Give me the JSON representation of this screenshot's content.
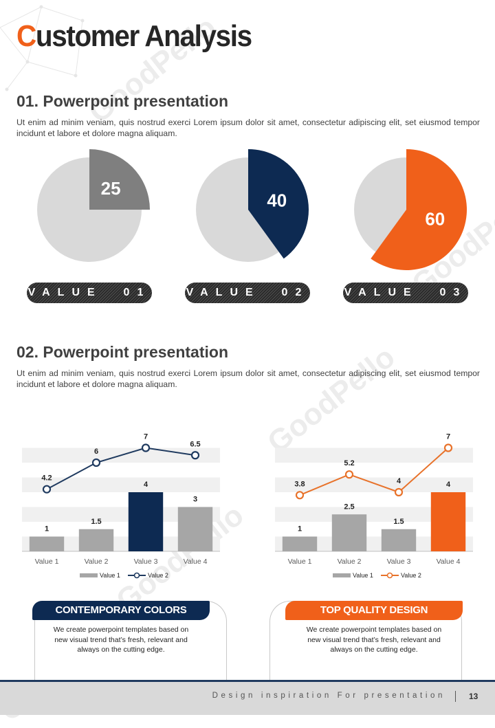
{
  "page_title": {
    "first_letter": "C",
    "rest": "ustomer Analysis"
  },
  "watermark": "GoodPello",
  "section1": {
    "heading": "01. Powerpoint presentation",
    "text": "Ut enim ad minim veniam, quis nostrud exerci  Lorem ipsum dolor sit amet, consectetur adipiscing elit, set eiusmod tempor incidunt et labore et dolore magna aliquam.",
    "pies": [
      {
        "value": 25,
        "label": "VALUE  01",
        "color": "#7f7f7f"
      },
      {
        "value": 40,
        "label": "VALUE  02",
        "color": "#0d2a52"
      },
      {
        "value": 60,
        "label": "VALUE  03",
        "color": "#f0601a"
      }
    ],
    "pie_background_color": "#d9d9d9"
  },
  "section2": {
    "heading": "02. Powerpoint presentation",
    "text": "Ut enim ad minim veniam, quis nostrud exerci  Lorem ipsum dolor sit amet, consectetur adipiscing elit, set eiusmod tempor incidunt et labore et dolore magna aliquam."
  },
  "chart_data": [
    {
      "type": "bar+line",
      "categories": [
        "Value 1",
        "Value 2",
        "Value 3",
        "Value 4"
      ],
      "series": [
        {
          "name": "Value 1",
          "type": "bar",
          "values": [
            1,
            1.5,
            4,
            3
          ],
          "color": "#a6a6a6",
          "highlight_index": 2,
          "highlight_color": "#0d2a52"
        },
        {
          "name": "Value 2",
          "type": "line",
          "values": [
            4.2,
            6,
            7,
            6.5
          ],
          "color": "#1f3a5f"
        }
      ],
      "ylim": [
        0,
        8
      ],
      "grid": "alternating bands"
    },
    {
      "type": "bar+line",
      "categories": [
        "Value 1",
        "Value 2",
        "Value 3",
        "Value 4"
      ],
      "series": [
        {
          "name": "Value 1",
          "type": "bar",
          "values": [
            1,
            2.5,
            1.5,
            4
          ],
          "color": "#a6a6a6",
          "highlight_index": 3,
          "highlight_color": "#f0601a"
        },
        {
          "name": "Value 2",
          "type": "line",
          "values": [
            3.8,
            5.2,
            4,
            7
          ],
          "color": "#e8722a"
        }
      ],
      "ylim": [
        0,
        8
      ],
      "grid": "alternating bands"
    }
  ],
  "cards": [
    {
      "title": "CONTEMPORARY COLORS",
      "banner_color": "#0d2a52",
      "lines": [
        "We create powerpoint templates based on",
        "new visual trend that’s fresh, relevant and",
        "always on the cutting edge."
      ]
    },
    {
      "title": "TOP QUALITY DESIGN",
      "banner_color": "#f0601a",
      "lines": [
        "We create powerpoint templates based on",
        "new visual trend that’s fresh, relevant and",
        "always on the cutting edge."
      ]
    }
  ],
  "footer": {
    "tagline": "Design inspiration For presentation",
    "page_number": "13"
  }
}
